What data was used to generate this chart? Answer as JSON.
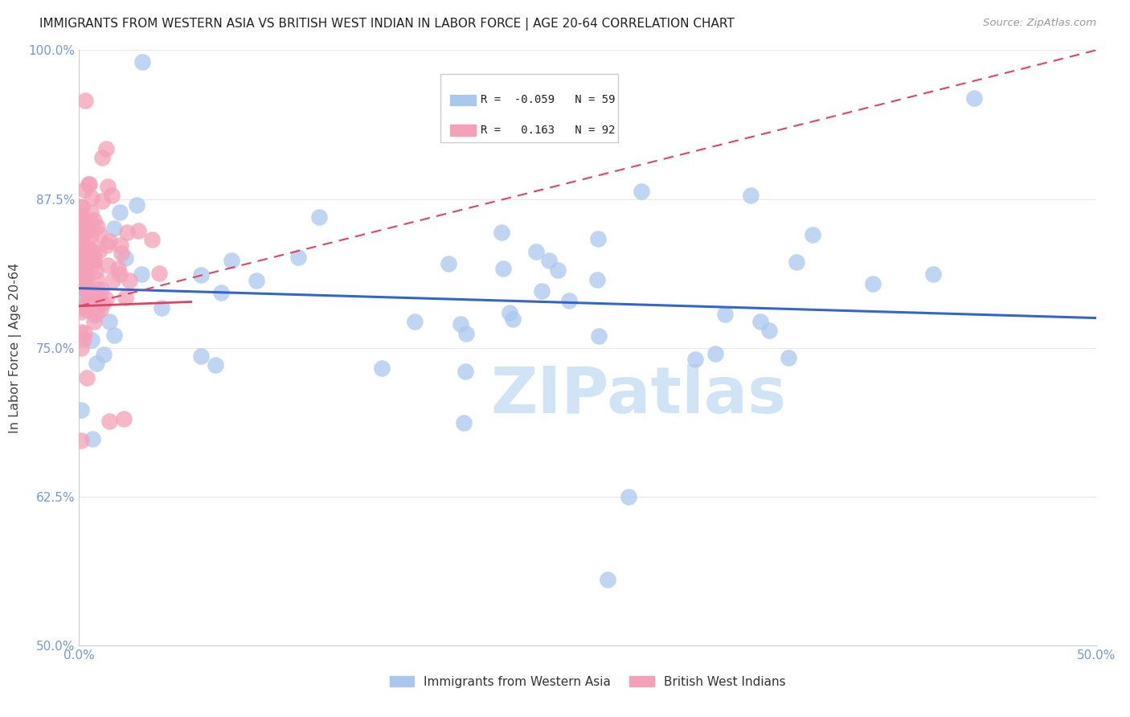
{
  "title": "IMMIGRANTS FROM WESTERN ASIA VS BRITISH WEST INDIAN IN LABOR FORCE | AGE 20-64 CORRELATION CHART",
  "source": "Source: ZipAtlas.com",
  "ylabel": "In Labor Force | Age 20-64",
  "xlim": [
    0.0,
    0.5
  ],
  "ylim": [
    0.5,
    1.0
  ],
  "xticks": [
    0.0,
    0.1,
    0.2,
    0.3,
    0.4,
    0.5
  ],
  "yticks": [
    0.5,
    0.625,
    0.75,
    0.875,
    1.0
  ],
  "xticklabels": [
    "0.0%",
    "",
    "",
    "",
    "",
    "50.0%"
  ],
  "yticklabels": [
    "50.0%",
    "62.5%",
    "75.0%",
    "87.5%",
    "100.0%"
  ],
  "blue_R": -0.059,
  "blue_N": 59,
  "pink_R": 0.163,
  "pink_N": 92,
  "blue_label": "Immigrants from Western Asia",
  "pink_label": "British West Indians",
  "blue_color": "#aac8ee",
  "pink_color": "#f4a0b8",
  "blue_line_color": "#3366cc",
  "pink_line_color": "#dd4466",
  "background_color": "#ffffff",
  "watermark_text": "ZIPatlas",
  "watermark_color": "#d0e4f5",
  "grid_color": "#e8e8e8",
  "tick_color": "#7799cc",
  "title_color": "#222222",
  "source_color": "#999999",
  "ylabel_color": "#444444"
}
